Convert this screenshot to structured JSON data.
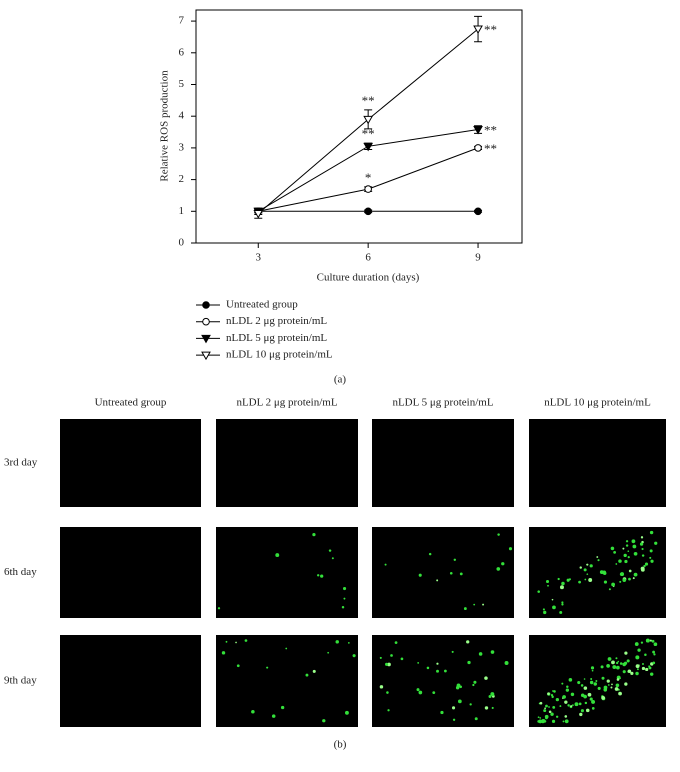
{
  "chart_data": {
    "type": "line",
    "y_label": "Relative ROS production",
    "x_label": "Culture duration (days)",
    "x": [
      3,
      6,
      9
    ],
    "xlim": [
      1.3,
      10.2
    ],
    "xticks": [
      3,
      6,
      9
    ],
    "ylim": [
      0,
      7.35
    ],
    "yticks": [
      0,
      1,
      2,
      3,
      4,
      5,
      6,
      7
    ],
    "series": [
      {
        "name": "Untreated group",
        "color": "#000000",
        "marker": "circle",
        "filled": true,
        "values": [
          1,
          1,
          1
        ],
        "errors": [
          0.04,
          0.04,
          0.03
        ],
        "significance": [
          null,
          null,
          null
        ]
      },
      {
        "name": "nLDL 2 μg protein/mL",
        "color": "#000000",
        "marker": "circle",
        "filled": false,
        "values": [
          1,
          1.7,
          3.0
        ],
        "errors": [
          0.05,
          0.07,
          0.05
        ],
        "significance": [
          null,
          "*",
          "**"
        ]
      },
      {
        "name": "nLDL 5 μg protein/mL",
        "color": "#000000",
        "marker": "triangle-down",
        "filled": true,
        "values": [
          1,
          3.05,
          3.58
        ],
        "errors": [
          0.1,
          0.1,
          0.12
        ],
        "significance": [
          null,
          "**",
          "**"
        ]
      },
      {
        "name": "nLDL 10 μg protein/mL",
        "color": "#000000",
        "marker": "triangle-down",
        "filled": false,
        "values": [
          0.93,
          3.9,
          6.75
        ],
        "errors": [
          0.15,
          0.3,
          0.4
        ],
        "significance": [
          null,
          "**",
          "**"
        ]
      }
    ]
  },
  "panel_a_label": "(a)",
  "panel_b_label": "(b)",
  "image_grid": {
    "columns": [
      "Untreated group",
      "nLDL 2 μg protein/mL",
      "nLDL 5 μg protein/mL",
      "nLDL 10 μg protein/mL"
    ],
    "rows": [
      "3rd day",
      "6th day",
      "9th day"
    ]
  }
}
